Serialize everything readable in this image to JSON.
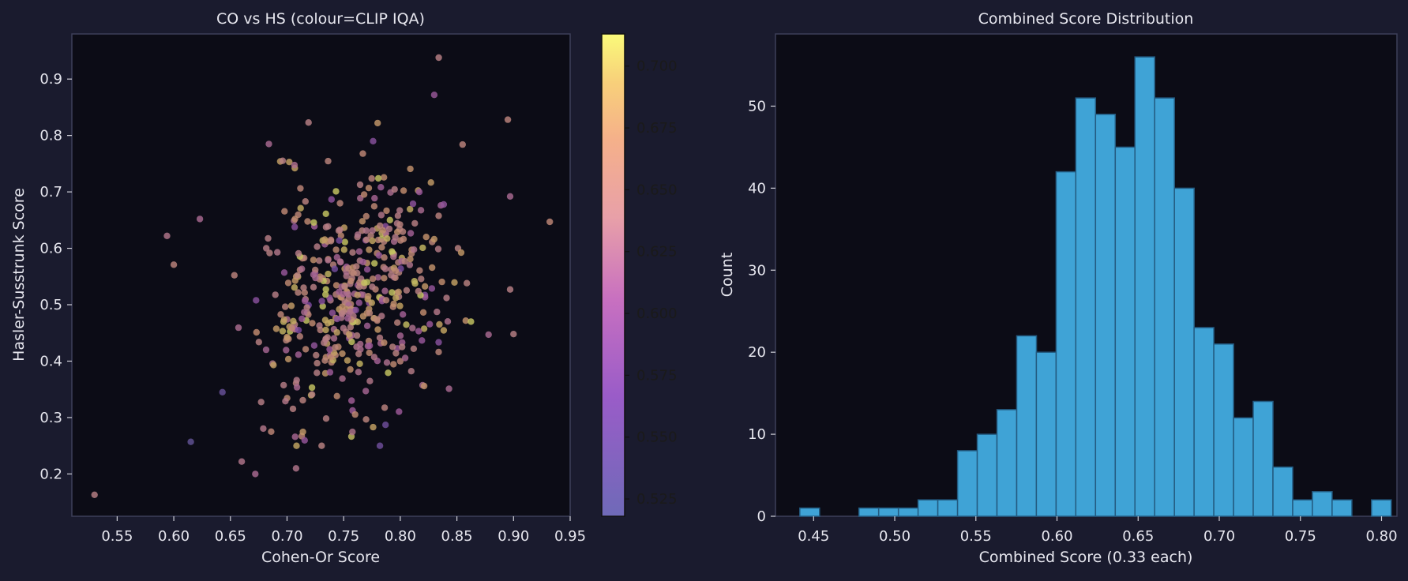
{
  "chart_data": [
    {
      "type": "scatter",
      "title": "CO vs HS (colour=CLIP IQA)",
      "xlabel": "Cohen-Or Score",
      "ylabel": "Hasler-Susstrunk Score",
      "xlim": [
        0.51,
        0.95
      ],
      "ylim": [
        0.125,
        0.98
      ],
      "xticks": [
        "0.55",
        "0.60",
        "0.65",
        "0.70",
        "0.75",
        "0.80",
        "0.85",
        "0.90",
        "0.95"
      ],
      "yticks": [
        "0.2",
        "0.3",
        "0.4",
        "0.5",
        "0.6",
        "0.7",
        "0.8",
        "0.9"
      ],
      "grid": false,
      "colorbar": {
        "label": "",
        "range": [
          0.518,
          0.713
        ],
        "ticks": [
          "0.525",
          "0.550",
          "0.575",
          "0.600",
          "0.625",
          "0.650",
          "0.675",
          "0.700"
        ],
        "colormap": "plasma"
      },
      "point_count": 500,
      "distribution": {
        "x_mean": 0.755,
        "x_std": 0.055,
        "y_mean": 0.52,
        "y_std": 0.12,
        "c_mean": 0.65,
        "c_std": 0.035
      },
      "points": [
        {
          "x": 0.53,
          "y": 0.163,
          "c": 0.64
        },
        {
          "x": 0.615,
          "y": 0.257,
          "c": 0.53
        },
        {
          "x": 0.66,
          "y": 0.222,
          "c": 0.63
        },
        {
          "x": 0.672,
          "y": 0.2,
          "c": 0.62
        },
        {
          "x": 0.708,
          "y": 0.21,
          "c": 0.63
        },
        {
          "x": 0.782,
          "y": 0.25,
          "c": 0.55
        },
        {
          "x": 0.643,
          "y": 0.345,
          "c": 0.54
        },
        {
          "x": 0.594,
          "y": 0.622,
          "c": 0.63
        },
        {
          "x": 0.6,
          "y": 0.571,
          "c": 0.65
        },
        {
          "x": 0.623,
          "y": 0.652,
          "c": 0.62
        },
        {
          "x": 0.932,
          "y": 0.647,
          "c": 0.66
        },
        {
          "x": 0.9,
          "y": 0.448,
          "c": 0.64
        },
        {
          "x": 0.895,
          "y": 0.828,
          "c": 0.65
        },
        {
          "x": 0.834,
          "y": 0.938,
          "c": 0.64
        },
        {
          "x": 0.83,
          "y": 0.872,
          "c": 0.6
        },
        {
          "x": 0.719,
          "y": 0.823,
          "c": 0.64
        },
        {
          "x": 0.78,
          "y": 0.822,
          "c": 0.68
        },
        {
          "x": 0.684,
          "y": 0.785,
          "c": 0.62
        },
        {
          "x": 0.776,
          "y": 0.79,
          "c": 0.58
        },
        {
          "x": 0.855,
          "y": 0.784,
          "c": 0.65
        },
        {
          "x": 0.694,
          "y": 0.754,
          "c": 0.69
        },
        {
          "x": 0.702,
          "y": 0.753,
          "c": 0.69
        },
        {
          "x": 0.878,
          "y": 0.447,
          "c": 0.62
        },
        {
          "x": 0.843,
          "y": 0.351,
          "c": 0.62
        },
        {
          "x": 0.776,
          "y": 0.283,
          "c": 0.69
        },
        {
          "x": 0.787,
          "y": 0.287,
          "c": 0.55
        },
        {
          "x": 0.713,
          "y": 0.267,
          "c": 0.66
        },
        {
          "x": 0.686,
          "y": 0.275,
          "c": 0.66
        },
        {
          "x": 0.897,
          "y": 0.527,
          "c": 0.64
        },
        {
          "x": 0.897,
          "y": 0.692,
          "c": 0.62
        }
      ]
    },
    {
      "type": "bar",
      "title": "Combined Score Distribution",
      "xlabel": "Combined Score (0.33 each)",
      "ylabel": "Count",
      "xlim": [
        0.4265,
        0.8095
      ],
      "ylim": [
        0,
        58.8
      ],
      "xticks": [
        "0.45",
        "0.50",
        "0.55",
        "0.60",
        "0.65",
        "0.70",
        "0.75",
        "0.80"
      ],
      "yticks": [
        "0",
        "10",
        "20",
        "30",
        "40",
        "50"
      ],
      "bin_start": 0.4415,
      "bin_width": 0.01215,
      "counts": [
        1,
        0,
        0,
        1,
        1,
        1,
        2,
        2,
        8,
        10,
        13,
        22,
        20,
        42,
        51,
        49,
        45,
        56,
        51,
        40,
        23,
        21,
        12,
        14,
        6,
        2,
        3,
        2,
        0,
        2
      ],
      "color": "#3fa3d6",
      "edgecolor": "#235a80",
      "grid": false
    }
  ]
}
